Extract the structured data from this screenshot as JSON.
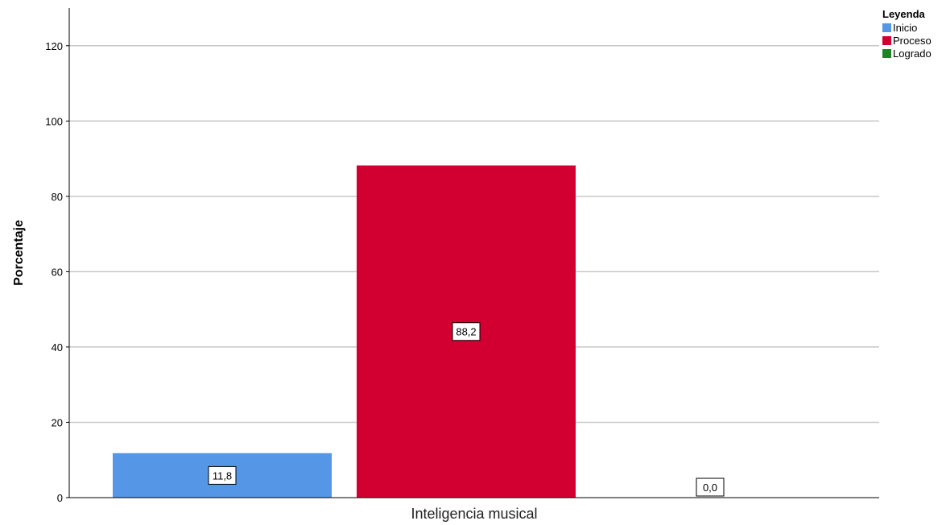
{
  "chart_data": {
    "type": "bar",
    "categories": [
      "Inteligencia musical"
    ],
    "series": [
      {
        "name": "Inicio",
        "values": [
          11.8
        ],
        "label": "11,8",
        "color": "#5596e6"
      },
      {
        "name": "Proceso",
        "values": [
          88.2
        ],
        "label": "88,2",
        "color": "#d20031"
      },
      {
        "name": "Logrado",
        "values": [
          0.0
        ],
        "label": "0,0",
        "color": "#1f8427"
      }
    ],
    "xlabel": "Inteligencia musical",
    "ylabel": "Porcentaje",
    "ylim": [
      0,
      130
    ],
    "yticks": [
      0,
      20,
      40,
      60,
      80,
      100,
      120
    ],
    "grid": true,
    "legend_title": "Leyenda",
    "legend_position": "top-right"
  }
}
